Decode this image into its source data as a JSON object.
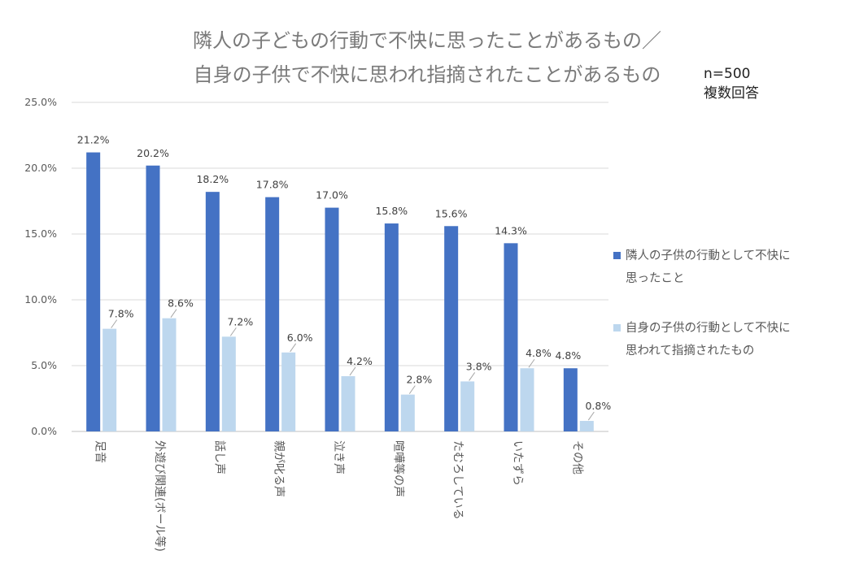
{
  "chart_data": {
    "type": "bar",
    "title": "隣人の子どもの行動で不快に思ったことがあるもの／",
    "subtitle": "自身の子供で不快に思われ指摘されたことがあるもの",
    "sample_note": "n=500",
    "answer_note": "複数回答",
    "categories": [
      "足音",
      "外遊び関連(ボール等)",
      "話し声",
      "親が叱る声",
      "泣き声",
      "喧嘩等の声",
      "たむろしている",
      "いたずら",
      "その他"
    ],
    "series": [
      {
        "name": "隣人の子供の行動として不快に思ったこと",
        "legend_lines": [
          "隣人の子供の行動として不快に",
          "思ったこと"
        ],
        "color": "#4472c4",
        "values": [
          21.2,
          20.2,
          18.2,
          17.8,
          17.0,
          15.8,
          15.6,
          14.3,
          4.8
        ],
        "labels": [
          "21.2%",
          "20.2%",
          "18.2%",
          "17.8%",
          "17.0%",
          "15.8%",
          "15.6%",
          "14.3%",
          "4.8%"
        ]
      },
      {
        "name": "自身の子供の行動として不快に思われて指摘されたもの",
        "legend_lines": [
          "自身の子供の行動として不快に",
          "思われて指摘されたもの"
        ],
        "color": "#bdd7ee",
        "values": [
          7.8,
          8.6,
          7.2,
          6.0,
          4.2,
          2.8,
          3.8,
          4.8,
          0.8
        ],
        "labels": [
          "7.8%",
          "8.6%",
          "7.2%",
          "6.0%",
          "4.2%",
          "2.8%",
          "3.8%",
          "4.8%",
          "0.8%"
        ]
      }
    ],
    "y_ticks": [
      0,
      5,
      10,
      15,
      20,
      25
    ],
    "y_tick_labels": [
      "0.0%",
      "5.0%",
      "10.0%",
      "15.0%",
      "20.0%",
      "25.0%"
    ],
    "ylim": [
      0,
      25
    ],
    "grid": true,
    "legend_position": "right"
  }
}
